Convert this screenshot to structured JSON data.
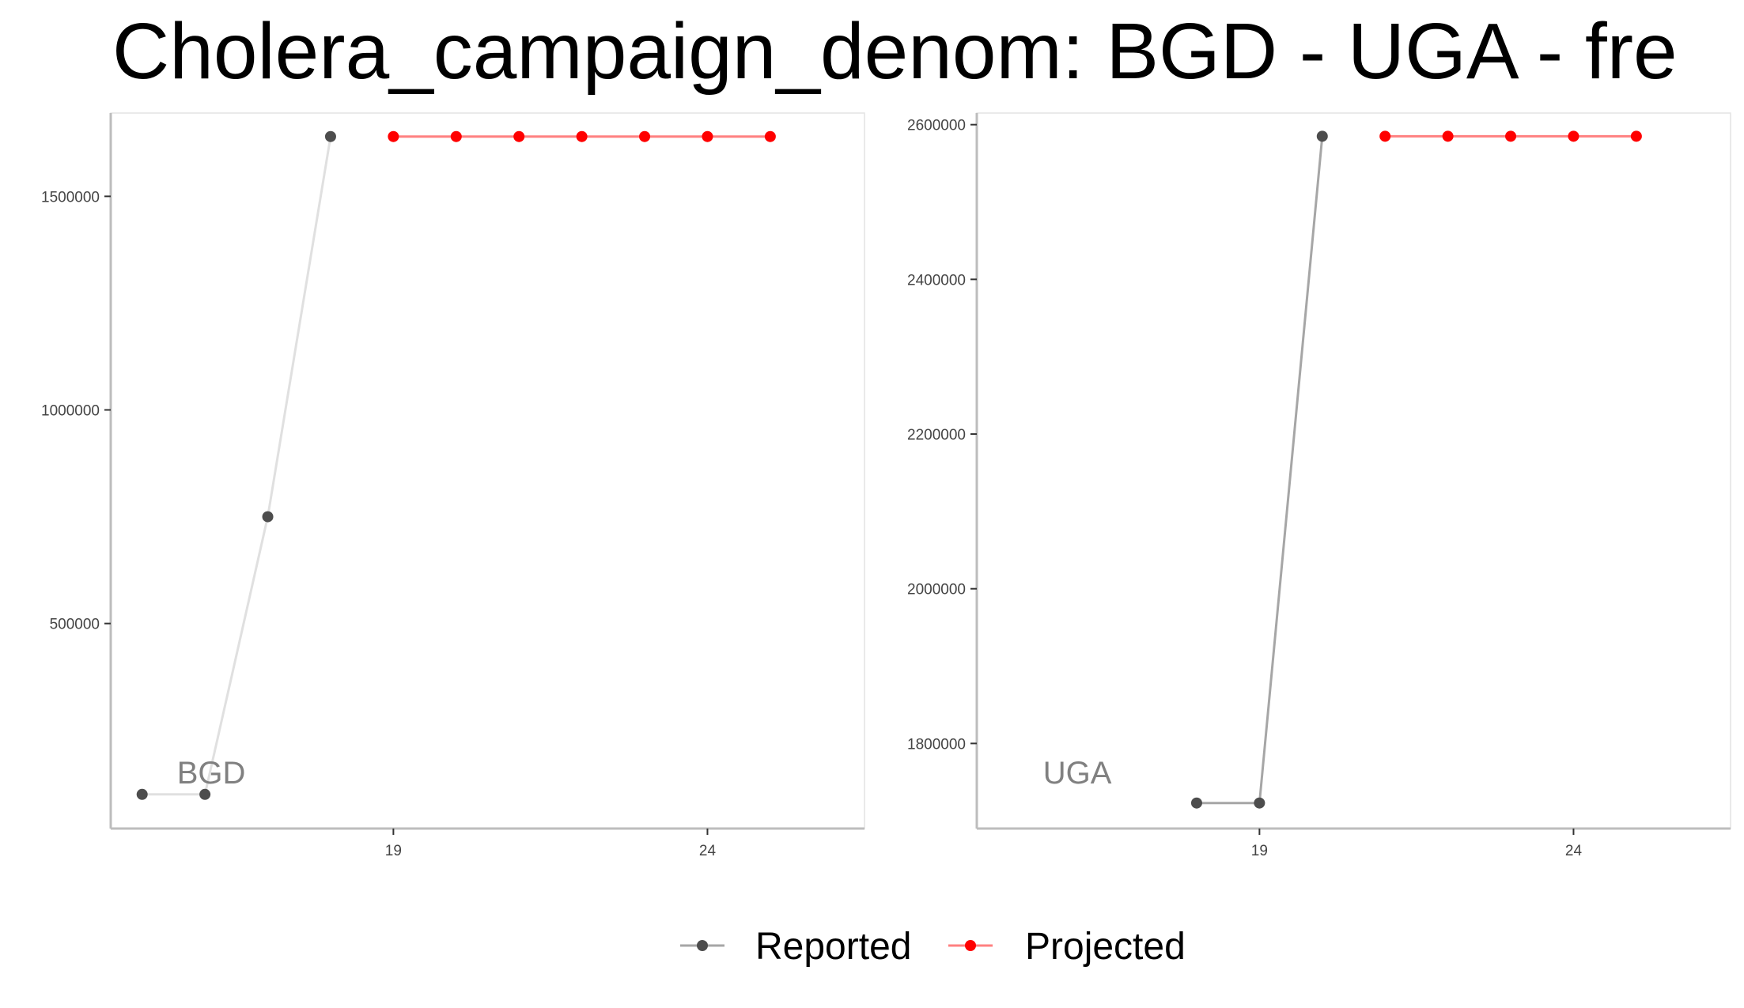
{
  "chart_data": {
    "type": "line",
    "title": "Cholera_campaign_denom: BGD - UGA - fre",
    "legend": {
      "position": "bottom",
      "entries": [
        {
          "label": "Reported",
          "color": "#4d4d4d"
        },
        {
          "label": "Projected",
          "color": "#ff0000"
        }
      ]
    },
    "xlim": [
      14.5,
      26.5
    ],
    "x_ticks": [
      19,
      24
    ],
    "panels": [
      {
        "label": "BGD",
        "ylim": [
          20000,
          1695000
        ],
        "y_ticks": [
          500000,
          1000000,
          1500000
        ],
        "series": [
          {
            "name": "Reported",
            "color": "#4d4d4d",
            "line_color": "#e0e0e0",
            "x": [
              15,
              16,
              17,
              18
            ],
            "y": [
              100000,
              100000,
              750000,
              1640000
            ]
          },
          {
            "name": "Projected",
            "color": "#ff0000",
            "line_color": "#ff8080",
            "x": [
              19,
              20,
              21,
              22,
              23,
              24,
              25
            ],
            "y": [
              1640000,
              1640000,
              1640000,
              1640000,
              1640000,
              1640000,
              1640000
            ]
          }
        ]
      },
      {
        "label": "UGA",
        "ylim": [
          1690000,
          2615000
        ],
        "y_ticks": [
          1800000,
          2000000,
          2200000,
          2400000,
          2600000
        ],
        "series": [
          {
            "name": "Reported",
            "color": "#4d4d4d",
            "line_color": "#a6a6a6",
            "x": [
              18,
              19,
              20
            ],
            "y": [
              1723000,
              1723000,
              2585000
            ]
          },
          {
            "name": "Projected",
            "color": "#ff0000",
            "line_color": "#ff8080",
            "x": [
              21,
              22,
              23,
              24,
              25
            ],
            "y": [
              2585000,
              2585000,
              2585000,
              2585000,
              2585000
            ]
          }
        ]
      }
    ]
  }
}
